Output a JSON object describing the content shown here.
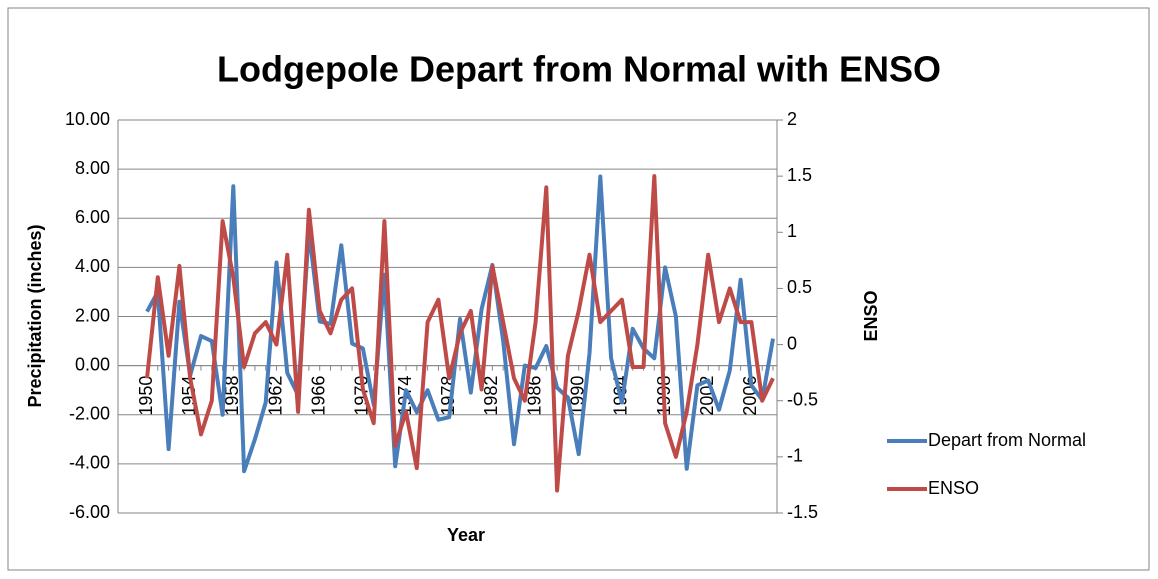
{
  "chart_data": {
    "type": "line",
    "title": "Lodgepole Depart from Normal with ENSO",
    "x_label": "Year",
    "y_label": "Precipitation (inches)",
    "y2_label": "ENSO",
    "categories": [
      1950,
      null,
      null,
      null,
      1954,
      null,
      null,
      null,
      1958,
      null,
      null,
      null,
      1962,
      null,
      null,
      null,
      1966,
      null,
      null,
      null,
      1970,
      null,
      null,
      null,
      1974,
      null,
      null,
      null,
      1978,
      null,
      null,
      null,
      1982,
      null,
      null,
      null,
      1986,
      null,
      null,
      null,
      1990,
      null,
      null,
      null,
      1994,
      null,
      null,
      null,
      1998,
      null,
      null,
      null,
      2002,
      null,
      null,
      null,
      2006,
      null,
      null
    ],
    "series": [
      {
        "name": "Depart from Normal",
        "color": "#4a7ebb",
        "values": [
          2.2,
          3.0,
          -3.4,
          2.6,
          -0.4,
          1.2,
          1.0,
          -2.0,
          7.3,
          -4.3,
          -3.0,
          -1.5,
          4.2,
          -0.3,
          -1.2,
          5.5,
          1.8,
          1.7,
          4.9,
          0.9,
          0.7,
          -1.6,
          3.7,
          -4.1,
          -1.0,
          -1.9,
          -1.0,
          -2.2,
          -2.1,
          1.9,
          -1.1,
          2.3,
          4.1,
          1.0,
          -3.2,
          0.0,
          -0.1,
          0.8,
          -0.9,
          -1.3,
          -3.6,
          0.5,
          7.7,
          0.3,
          -1.5,
          1.5,
          0.7,
          0.3,
          4.0,
          2.0,
          -4.2,
          -0.8,
          -0.6,
          -1.8,
          -0.2,
          3.5,
          -0.8,
          -1.4,
          1.1
        ]
      },
      {
        "name": "ENSO",
        "color": "#be4b48",
        "axis": "y2",
        "values": [
          -0.3,
          0.6,
          -0.1,
          0.7,
          -0.3,
          -0.8,
          -0.5,
          1.1,
          0.6,
          -0.2,
          0.1,
          0.2,
          0.0,
          0.8,
          -0.6,
          1.2,
          0.3,
          0.1,
          0.4,
          0.5,
          -0.4,
          -0.7,
          1.1,
          -0.9,
          -0.6,
          -1.1,
          0.2,
          0.4,
          -0.3,
          0.1,
          0.3,
          -0.4,
          0.7,
          0.2,
          -0.3,
          -0.5,
          0.2,
          1.4,
          -1.3,
          -0.1,
          0.3,
          0.8,
          0.2,
          0.3,
          0.4,
          -0.2,
          -0.2,
          1.5,
          -0.7,
          -1.0,
          -0.6,
          0.0,
          0.8,
          0.2,
          0.5,
          0.2,
          0.2,
          -0.5,
          -0.3
        ]
      }
    ],
    "ylim": [
      -6,
      10
    ],
    "yticks": [
      {
        "value": -6,
        "label": "-6.00"
      },
      {
        "value": -4,
        "label": "-4.00"
      },
      {
        "value": -2,
        "label": "-2.00"
      },
      {
        "value": 0,
        "label": "0.00"
      },
      {
        "value": 2,
        "label": "2.00"
      },
      {
        "value": 4,
        "label": "4.00"
      },
      {
        "value": 6,
        "label": "6.00"
      },
      {
        "value": 8,
        "label": "8.00"
      },
      {
        "value": 10,
        "label": "10.00"
      }
    ],
    "y2lim": [
      -1.5,
      2
    ],
    "y2ticks": [
      -1.5,
      -1,
      -0.5,
      0,
      0.5,
      1,
      1.5,
      2
    ],
    "grid": true,
    "legend": "right"
  }
}
